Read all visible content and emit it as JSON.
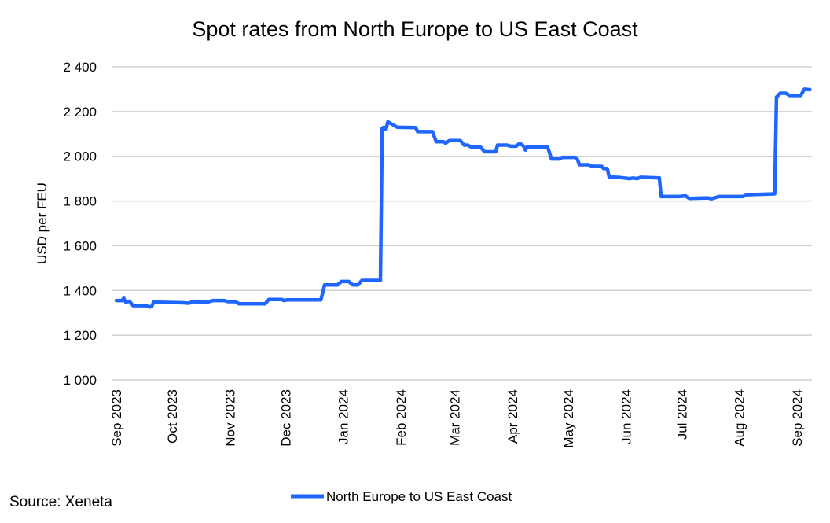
{
  "chart_data": {
    "type": "line",
    "title": "Spot rates from North Europe to US East Coast",
    "ylabel": "USD per FEU",
    "xlabel": "",
    "ylim": [
      1000,
      2400
    ],
    "xlim": [
      "2023-09-01",
      "2024-09-08"
    ],
    "grid": true,
    "legend_position": "bottom",
    "y_ticks": [
      "1 000",
      "1 200",
      "1 400",
      "1 600",
      "1 800",
      "2 000",
      "2 200",
      "2 400"
    ],
    "y_tick_values": [
      1000,
      1200,
      1400,
      1600,
      1800,
      2000,
      2200,
      2400
    ],
    "x_ticks": [
      "Sep 2023",
      "Oct 2023",
      "Nov 2023",
      "Dec 2023",
      "Jan 2024",
      "Feb 2024",
      "Mar 2024",
      "Apr 2024",
      "May 2024",
      "Jun 2024",
      "Jul 2024",
      "Aug 2024",
      "Sep 2024"
    ],
    "x_tick_dates": [
      "2023-09-01",
      "2023-10-01",
      "2023-11-01",
      "2023-12-01",
      "2024-01-01",
      "2024-02-01",
      "2024-03-01",
      "2024-04-01",
      "2024-05-01",
      "2024-06-01",
      "2024-07-01",
      "2024-08-01",
      "2024-09-01"
    ],
    "series": [
      {
        "name": "North Europe to US East Coast",
        "color": "#1F66FF",
        "x": [
          "2023-09-01",
          "2023-09-04",
          "2023-09-05",
          "2023-09-06",
          "2023-09-08",
          "2023-09-10",
          "2023-09-17",
          "2023-09-19",
          "2023-09-20",
          "2023-09-21",
          "2023-10-06",
          "2023-10-10",
          "2023-10-12",
          "2023-10-20",
          "2023-10-23",
          "2023-10-29",
          "2023-10-31",
          "2023-11-04",
          "2023-11-06",
          "2023-11-20",
          "2023-11-22",
          "2023-11-29",
          "2023-11-30",
          "2023-12-02",
          "2023-12-20",
          "2023-12-22",
          "2023-12-29",
          "2023-12-31",
          "2024-01-04",
          "2024-01-06",
          "2024-01-09",
          "2024-01-11",
          "2024-01-21",
          "2024-01-22",
          "2024-01-23",
          "2024-01-24",
          "2024-01-25",
          "2024-01-28",
          "2024-01-30",
          "2024-02-09",
          "2024-02-10",
          "2024-02-18",
          "2024-02-20",
          "2024-02-24",
          "2024-02-25",
          "2024-02-27",
          "2024-03-04",
          "2024-03-06",
          "2024-03-08",
          "2024-03-10",
          "2024-03-15",
          "2024-03-17",
          "2024-03-23",
          "2024-03-24",
          "2024-03-29",
          "2024-03-31",
          "2024-04-03",
          "2024-04-05",
          "2024-04-07",
          "2024-04-08",
          "2024-04-09",
          "2024-04-20",
          "2024-04-22",
          "2024-04-26",
          "2024-04-28",
          "2024-05-05",
          "2024-05-06",
          "2024-05-07",
          "2024-05-12",
          "2024-05-14",
          "2024-05-19",
          "2024-05-20",
          "2024-05-22",
          "2024-05-23",
          "2024-05-29",
          "2024-06-03",
          "2024-06-05",
          "2024-06-07",
          "2024-06-09",
          "2024-06-19",
          "2024-06-20",
          "2024-06-30",
          "2024-07-03",
          "2024-07-05",
          "2024-07-15",
          "2024-07-17",
          "2024-07-19",
          "2024-07-21",
          "2024-08-03",
          "2024-08-05",
          "2024-08-20",
          "2024-08-21",
          "2024-08-23",
          "2024-08-26",
          "2024-08-28",
          "2024-09-03",
          "2024-09-05",
          "2024-09-08"
        ],
        "values": [
          1355,
          1355,
          1365,
          1348,
          1352,
          1332,
          1332,
          1326,
          1328,
          1348,
          1345,
          1343,
          1350,
          1348,
          1355,
          1355,
          1350,
          1350,
          1340,
          1340,
          1360,
          1360,
          1355,
          1358,
          1358,
          1425,
          1425,
          1440,
          1440,
          1425,
          1425,
          1445,
          1445,
          2126,
          2130,
          2120,
          2154,
          2140,
          2130,
          2128,
          2110,
          2110,
          2065,
          2065,
          2058,
          2070,
          2070,
          2050,
          2050,
          2040,
          2040,
          2020,
          2020,
          2050,
          2050,
          2045,
          2045,
          2058,
          2045,
          2028,
          2042,
          2040,
          1988,
          1988,
          1995,
          1995,
          1985,
          1962,
          1962,
          1955,
          1955,
          1945,
          1945,
          1908,
          1905,
          1900,
          1903,
          1900,
          1906,
          1903,
          1820,
          1820,
          1823,
          1812,
          1814,
          1810,
          1815,
          1820,
          1820,
          1828,
          1832,
          2265,
          2282,
          2282,
          2272,
          2272,
          2300,
          2298
        ]
      }
    ]
  },
  "source": "Source: Xeneta"
}
